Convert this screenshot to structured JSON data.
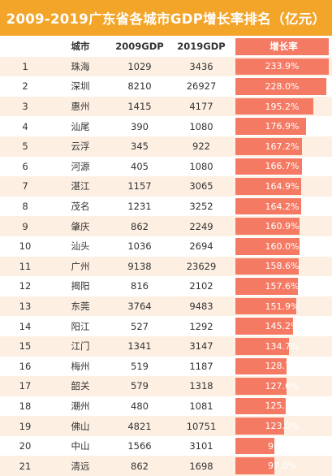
{
  "title": "2009-2019广东省各城市GDP增长率排名（亿元）",
  "colors": {
    "title_bg": "#f3a52a",
    "odd_row_bg": "#fdf0e3",
    "bar": "#f47a63"
  },
  "headers": {
    "city": "城市",
    "gdp2009": "2009GDP",
    "gdp2019": "2019GDP",
    "rate": "增长率"
  },
  "rows": [
    {
      "rank": "1",
      "city": "珠海",
      "gdp2009": "1029",
      "gdp2019": "3436",
      "rate": "233.9%",
      "rate_value": 233.9
    },
    {
      "rank": "2",
      "city": "深圳",
      "gdp2009": "8210",
      "gdp2019": "26927",
      "rate": "228.0%",
      "rate_value": 228.0
    },
    {
      "rank": "3",
      "city": "惠州",
      "gdp2009": "1415",
      "gdp2019": "4177",
      "rate": "195.2%",
      "rate_value": 195.2
    },
    {
      "rank": "4",
      "city": "汕尾",
      "gdp2009": "390",
      "gdp2019": "1080",
      "rate": "176.9%",
      "rate_value": 176.9
    },
    {
      "rank": "5",
      "city": "云浮",
      "gdp2009": "345",
      "gdp2019": "922",
      "rate": "167.2%",
      "rate_value": 167.2
    },
    {
      "rank": "6",
      "city": "河源",
      "gdp2009": "405",
      "gdp2019": "1080",
      "rate": "166.7%",
      "rate_value": 166.7
    },
    {
      "rank": "7",
      "city": "湛江",
      "gdp2009": "1157",
      "gdp2019": "3065",
      "rate": "164.9%",
      "rate_value": 164.9
    },
    {
      "rank": "8",
      "city": "茂名",
      "gdp2009": "1231",
      "gdp2019": "3252",
      "rate": "164.2%",
      "rate_value": 164.2
    },
    {
      "rank": "9",
      "city": "肇庆",
      "gdp2009": "862",
      "gdp2019": "2249",
      "rate": "160.9%",
      "rate_value": 160.9
    },
    {
      "rank": "10",
      "city": "汕头",
      "gdp2009": "1036",
      "gdp2019": "2694",
      "rate": "160.0%",
      "rate_value": 160.0
    },
    {
      "rank": "11",
      "city": "广州",
      "gdp2009": "9138",
      "gdp2019": "23629",
      "rate": "158.6%",
      "rate_value": 158.6
    },
    {
      "rank": "12",
      "city": "揭阳",
      "gdp2009": "816",
      "gdp2019": "2102",
      "rate": "157.6%",
      "rate_value": 157.6
    },
    {
      "rank": "13",
      "city": "东莞",
      "gdp2009": "3764",
      "gdp2019": "9483",
      "rate": "151.9%",
      "rate_value": 151.9
    },
    {
      "rank": "14",
      "city": "阳江",
      "gdp2009": "527",
      "gdp2019": "1292",
      "rate": "145.2%",
      "rate_value": 145.2
    },
    {
      "rank": "15",
      "city": "江门",
      "gdp2009": "1341",
      "gdp2019": "3147",
      "rate": "134.7%",
      "rate_value": 134.7
    },
    {
      "rank": "16",
      "city": "梅州",
      "gdp2009": "519",
      "gdp2019": "1187",
      "rate": "128.7%",
      "rate_value": 128.7
    },
    {
      "rank": "17",
      "city": "韶关",
      "gdp2009": "579",
      "gdp2019": "1318",
      "rate": "127.6%",
      "rate_value": 127.6
    },
    {
      "rank": "18",
      "city": "潮州",
      "gdp2009": "480",
      "gdp2019": "1081",
      "rate": "125.2%",
      "rate_value": 125.2
    },
    {
      "rank": "19",
      "city": "佛山",
      "gdp2009": "4821",
      "gdp2019": "10751",
      "rate": "123.0%",
      "rate_value": 123.0
    },
    {
      "rank": "20",
      "city": "中山",
      "gdp2009": "1566",
      "gdp2019": "3101",
      "rate": "98.0%",
      "rate_value": 98.0
    },
    {
      "rank": "21",
      "city": "清远",
      "gdp2009": "862",
      "gdp2019": "1698",
      "rate": "97.0%",
      "rate_value": 97.0
    }
  ]
}
